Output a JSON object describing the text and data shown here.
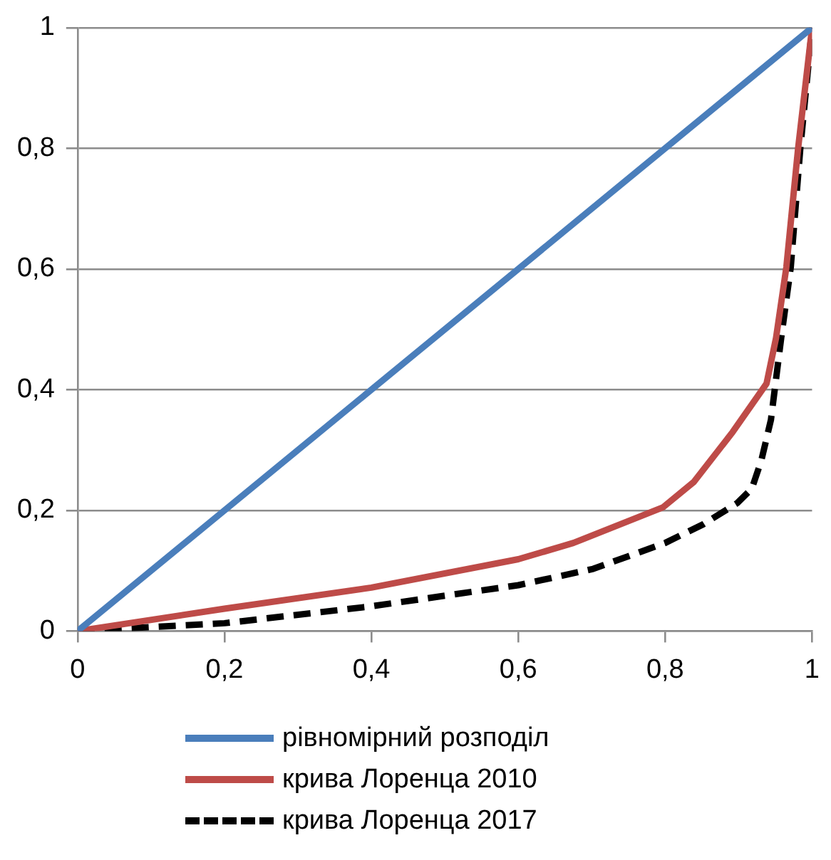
{
  "chart_data": {
    "type": "line",
    "xlim": [
      0,
      1
    ],
    "ylim": [
      0,
      1
    ],
    "xticks": [
      0,
      {
        "value": 0.2,
        "label": "0,2"
      },
      {
        "value": 0.4,
        "label": "0,4"
      },
      {
        "value": 0.6,
        "label": "0,6"
      },
      {
        "value": 0.8,
        "label": "0,8"
      },
      1
    ],
    "yticks": [
      0,
      {
        "value": 0.2,
        "label": "0,2"
      },
      {
        "value": 0.4,
        "label": "0,4"
      },
      {
        "value": 0.6,
        "label": "0,6"
      },
      {
        "value": 0.8,
        "label": "0,8"
      },
      1
    ],
    "grid": "y",
    "legend": "bottom",
    "marker": "none",
    "series": [
      {
        "name": "рівномірний розподіл",
        "color": "#4a7ebb",
        "x": [
          0,
          1
        ],
        "values": [
          0,
          1
        ],
        "line_style": "solid"
      },
      {
        "name": "крива Лоренца 2010",
        "color": "#be4b48",
        "x": [
          0,
          0.2,
          0.4,
          0.6,
          0.675,
          0.797,
          0.839,
          0.892,
          0.938,
          0.951,
          0.965,
          0.981,
          1
        ],
        "values": [
          0,
          0.037,
          0.072,
          0.119,
          0.146,
          0.205,
          0.247,
          0.33,
          0.41,
          0.486,
          0.603,
          0.8,
          1
        ],
        "line_style": "solid"
      },
      {
        "name": "крива Лоренца 2017",
        "color": "#000000",
        "x": [
          0,
          0.2,
          0.4,
          0.6,
          0.702,
          0.8,
          0.852,
          0.898,
          0.918,
          0.931,
          0.944,
          0.958,
          0.971,
          0.984,
          1
        ],
        "values": [
          0,
          0.013,
          0.041,
          0.076,
          0.103,
          0.146,
          0.177,
          0.212,
          0.236,
          0.283,
          0.35,
          0.486,
          0.603,
          0.8,
          1
        ],
        "line_style": "dashed"
      }
    ]
  }
}
